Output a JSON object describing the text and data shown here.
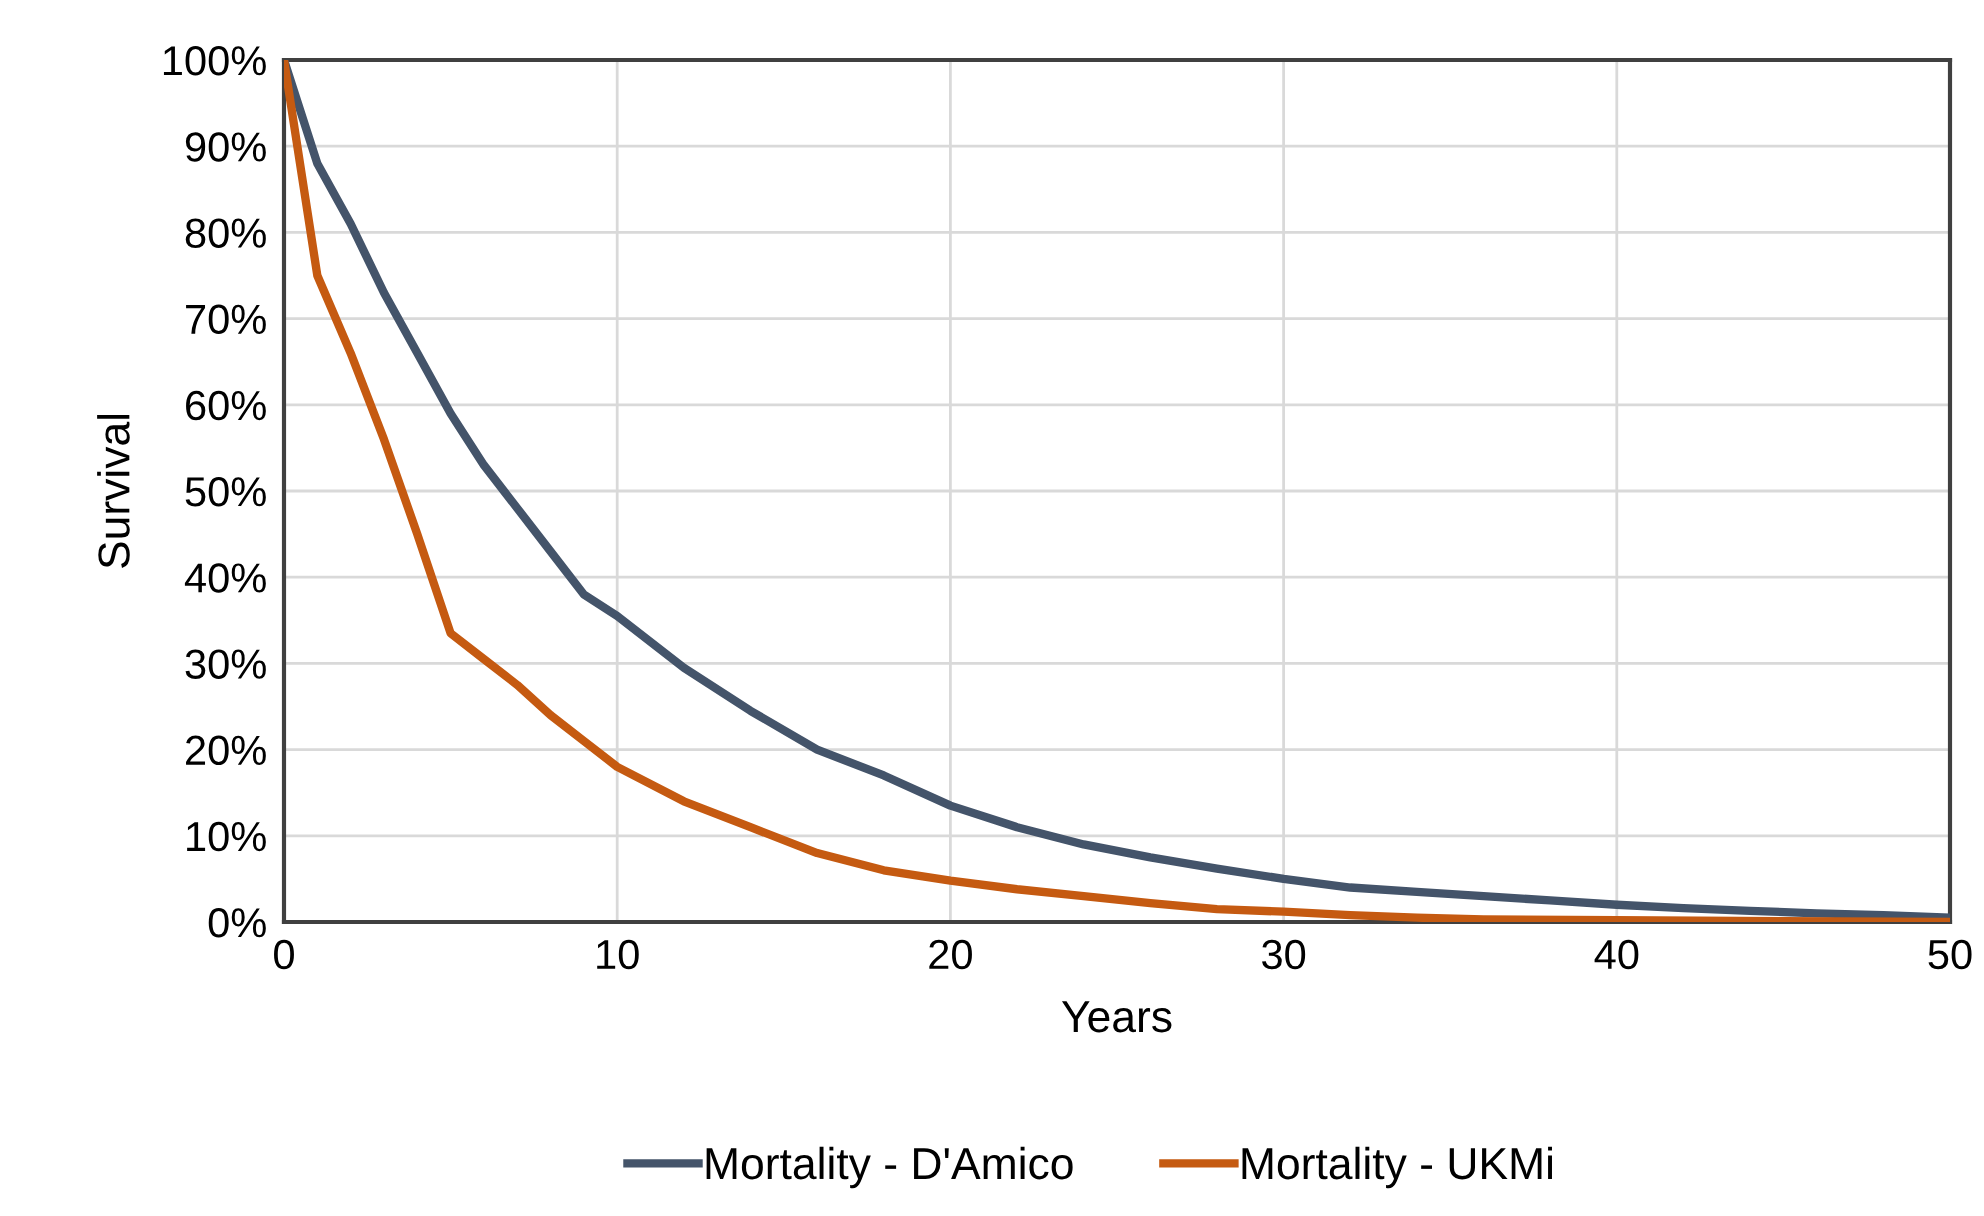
{
  "chart_data": {
    "type": "line",
    "xlabel": "Years",
    "ylabel": "Survival",
    "xlim": [
      0,
      50
    ],
    "xticks": [
      0,
      10,
      20,
      30,
      40,
      50
    ],
    "ylim": [
      0,
      100
    ],
    "yticks": [
      {
        "value": 0,
        "label": "0%"
      },
      {
        "value": 10,
        "label": "10%"
      },
      {
        "value": 20,
        "label": "20%"
      },
      {
        "value": 30,
        "label": "30%"
      },
      {
        "value": 40,
        "label": "40%"
      },
      {
        "value": 50,
        "label": "50%"
      },
      {
        "value": 60,
        "label": "60%"
      },
      {
        "value": 70,
        "label": "70%"
      },
      {
        "value": 80,
        "label": "80%"
      },
      {
        "value": 90,
        "label": "90%"
      },
      {
        "value": 100,
        "label": "100%"
      }
    ],
    "grid": true,
    "legend": "bottom",
    "marker": "none",
    "line_style": "solid",
    "series": [
      {
        "name": "Mortality - D'Amico",
        "color": "#44546a",
        "x": [
          0,
          1,
          2,
          3,
          4,
          5,
          6,
          7,
          8,
          9,
          10,
          12,
          14,
          16,
          18,
          20,
          22,
          24,
          26,
          28,
          30,
          32,
          34,
          36,
          38,
          40,
          42,
          44,
          46,
          48,
          50
        ],
        "values": [
          100,
          88,
          81,
          73,
          66,
          59,
          53,
          48,
          43,
          38,
          35.5,
          29.5,
          24.5,
          20,
          17,
          13.5,
          11,
          9,
          7.5,
          6.2,
          5,
          4,
          3.5,
          3,
          2.5,
          2,
          1.6,
          1.3,
          1,
          0.8,
          0.5
        ]
      },
      {
        "name": "Mortality - UKMi",
        "color": "#c55a11",
        "x": [
          0,
          1,
          2,
          3,
          4,
          5,
          6,
          7,
          8,
          9,
          10,
          12,
          14,
          16,
          18,
          20,
          22,
          24,
          26,
          28,
          30,
          32,
          34,
          36,
          40,
          45,
          50
        ],
        "values": [
          100,
          75,
          66,
          56,
          45,
          33.5,
          30.5,
          27.5,
          24,
          21,
          18,
          14,
          11,
          8,
          6,
          4.8,
          3.8,
          3,
          2.2,
          1.5,
          1.2,
          0.8,
          0.5,
          0.3,
          0.2,
          0.1,
          0
        ]
      }
    ]
  }
}
